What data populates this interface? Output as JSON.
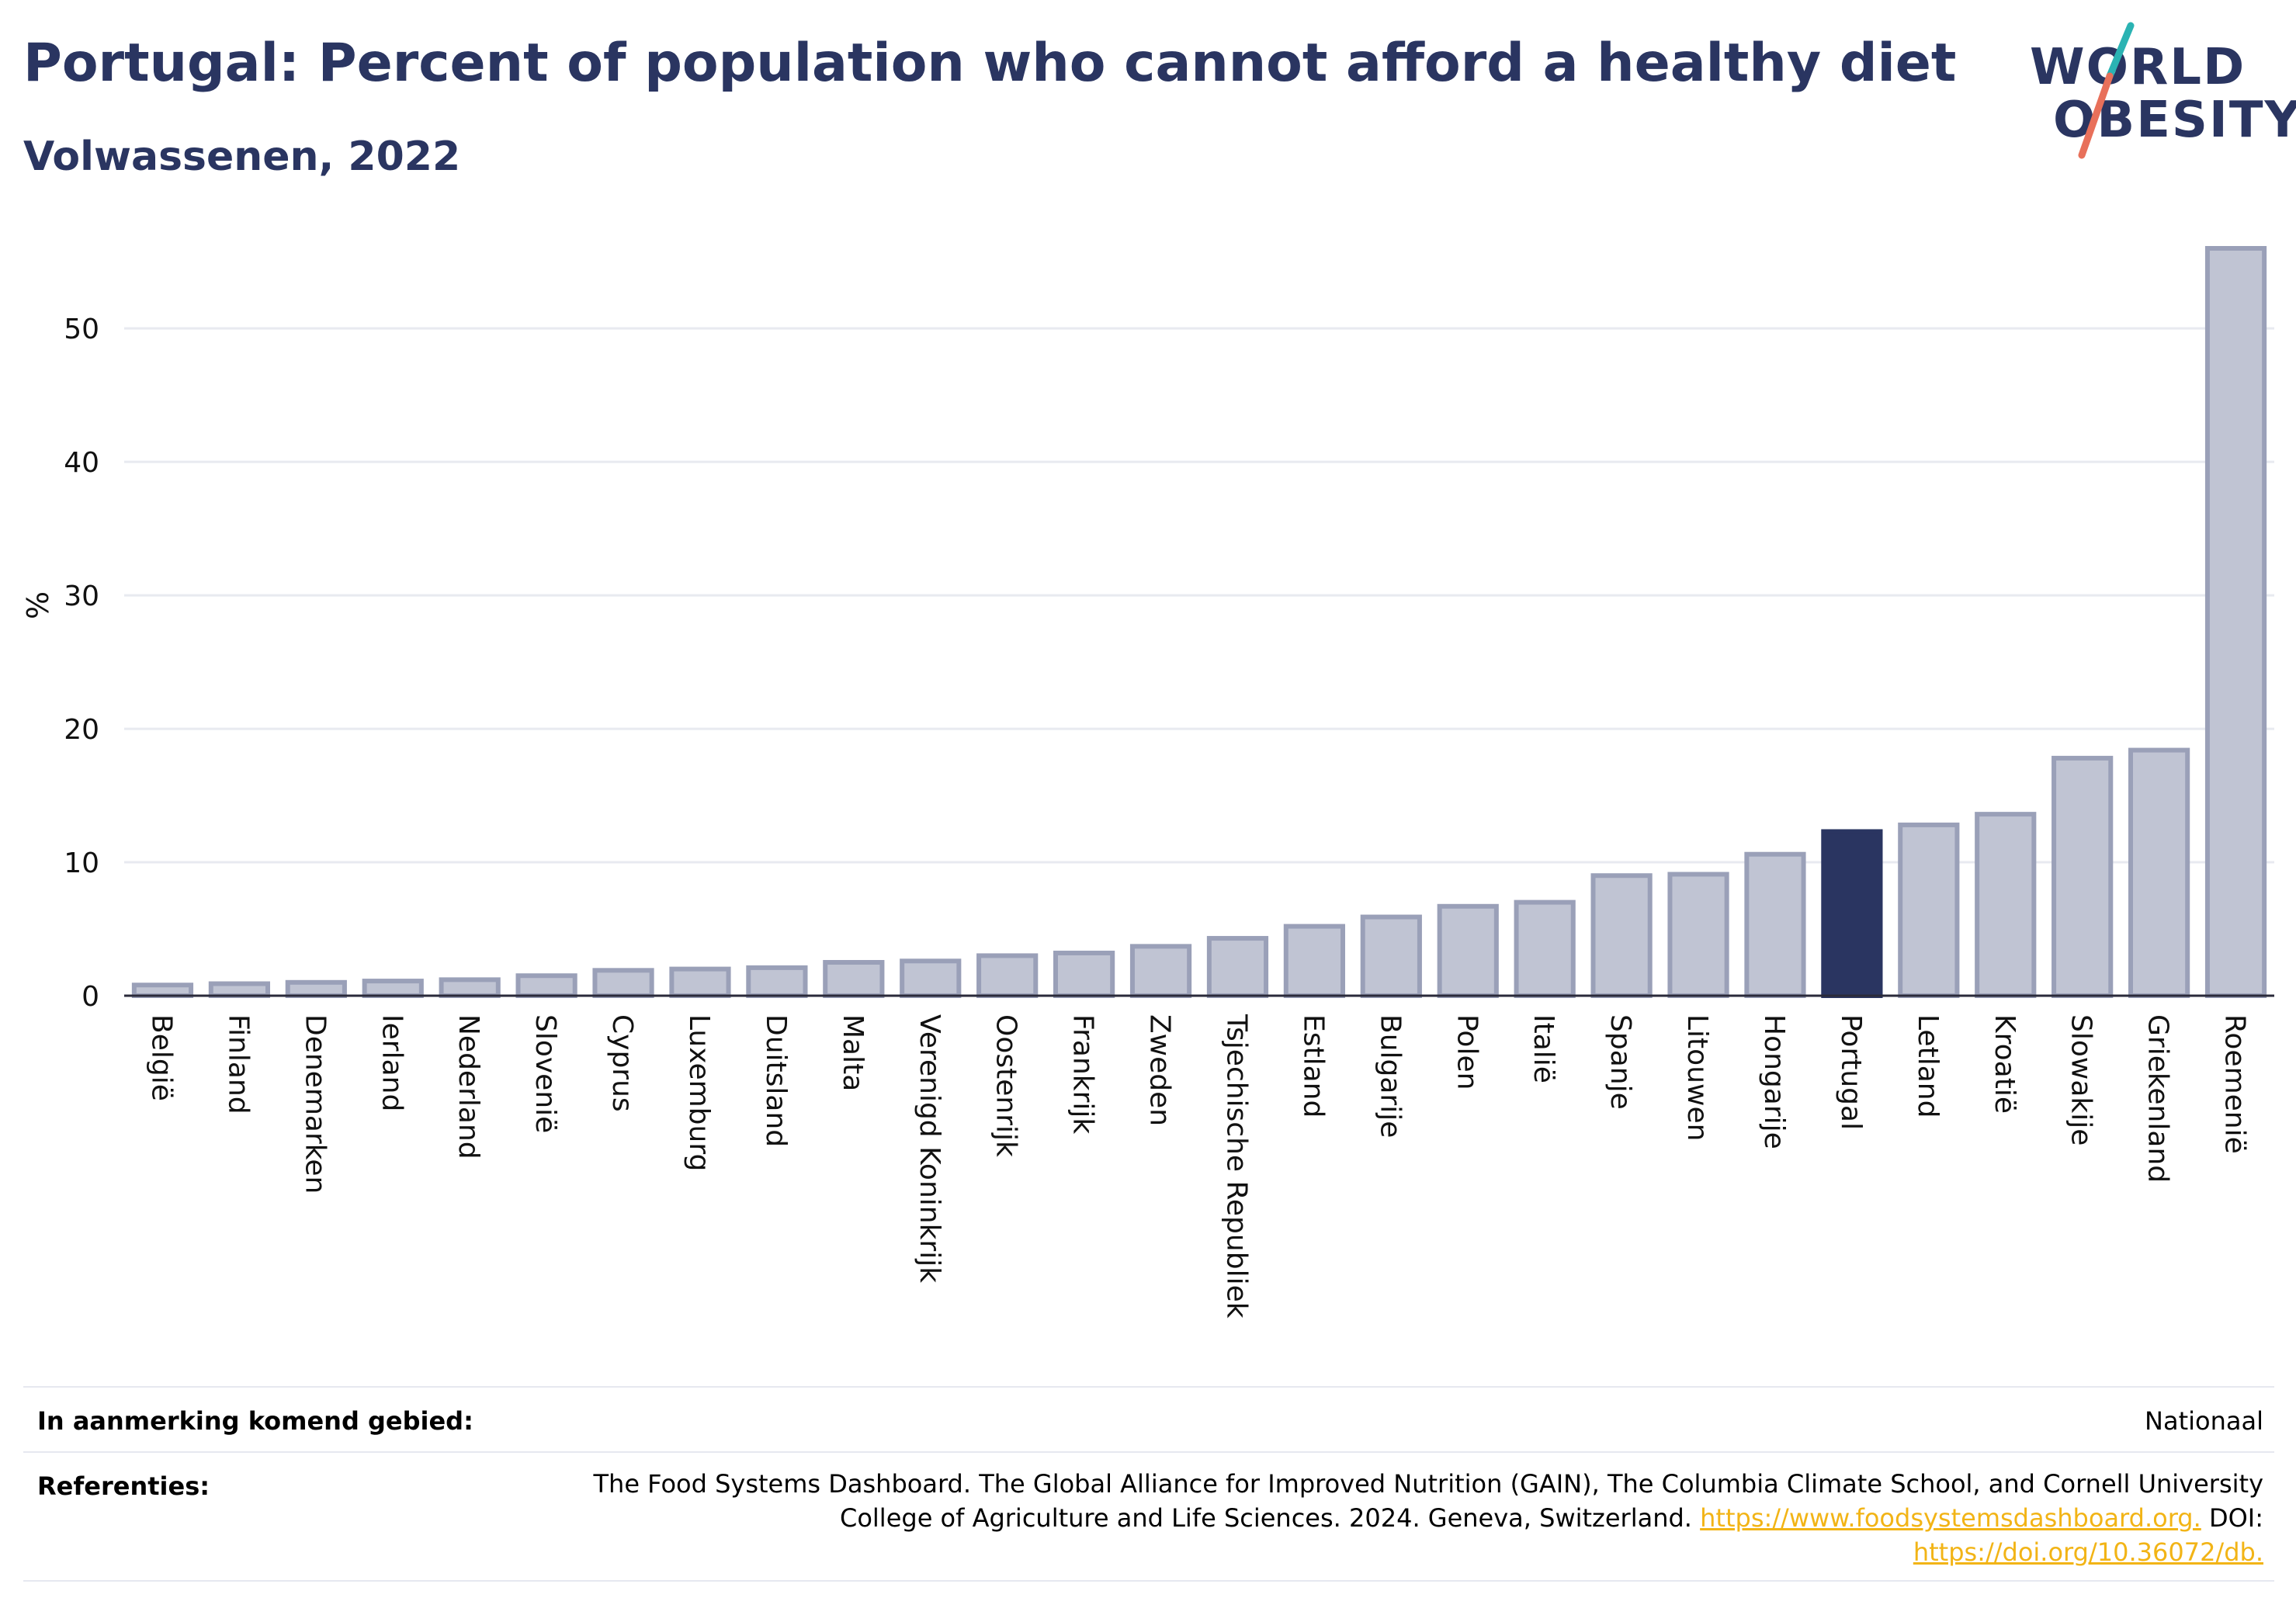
{
  "header": {
    "title": "Portugal: Percent of population who cannot afford a healthy diet",
    "subtitle": "Volwassenen, 2022"
  },
  "logo": {
    "line1": "WORLD",
    "line2": "OBESITY",
    "slash_colors": [
      "#2bb3b3",
      "#e8705a"
    ]
  },
  "colors": {
    "bar_default": "#c0c4d3",
    "bar_border": "#9aa0b8",
    "bar_highlight": "#2a3561",
    "grid": "#e8eaf0",
    "link": "#f2b416"
  },
  "chart_data": {
    "type": "bar",
    "ylabel": "%",
    "ylim": [
      0,
      56
    ],
    "yticks": [
      0,
      10,
      20,
      30,
      40,
      50
    ],
    "highlight": "Portugal",
    "categories": [
      "België",
      "Finland",
      "Denemarken",
      "Ierland",
      "Nederland",
      "Slovenië",
      "Cyprus",
      "Luxemburg",
      "Duitsland",
      "Malta",
      "Verenigd Koninkrijk",
      "Oostenrijk",
      "Frankrijk",
      "Zweden",
      "Tsjechische Republiek",
      "Estland",
      "Bulgarije",
      "Polen",
      "Italië",
      "Spanje",
      "Litouwen",
      "Hongarije",
      "Portugal",
      "Letland",
      "Kroatië",
      "Slowakije",
      "Griekenland",
      "Roemenië"
    ],
    "values": [
      0.8,
      0.9,
      1.0,
      1.1,
      1.2,
      1.5,
      1.9,
      2.0,
      2.1,
      2.5,
      2.6,
      3.0,
      3.2,
      3.7,
      4.3,
      5.2,
      5.9,
      6.7,
      7.0,
      9.0,
      9.1,
      10.6,
      12.3,
      12.8,
      13.6,
      17.8,
      18.4,
      56.0
    ]
  },
  "footer": {
    "region_label": "In aanmerking komend gebied:",
    "region_value": "Nationaal",
    "references_label": "Referenties:",
    "references_text": "The Food Systems Dashboard. The Global Alliance for Improved Nutrition (GAIN), The Columbia Climate School, and Cornell University College of Agriculture and Life Sciences. 2024. Geneva, Switzerland. ",
    "references_link1": "https://www.foodsystemsdashboard.org.",
    "references_doi_label": " DOI: ",
    "references_link2": "https://doi.org/10.36072/db."
  }
}
